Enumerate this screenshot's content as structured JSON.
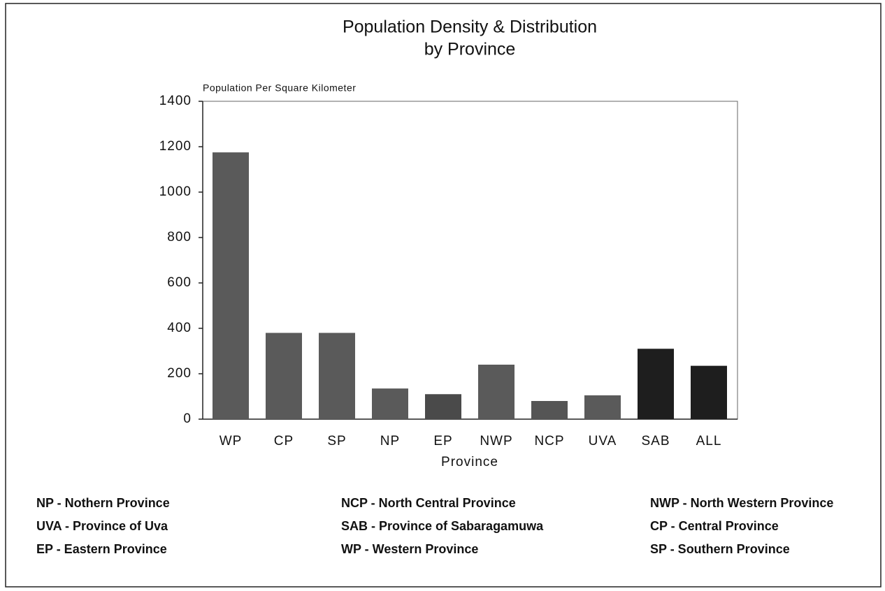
{
  "chart_data": {
    "type": "bar",
    "title": "Population Density & Distribution",
    "subtitle": "by Province",
    "y_label": "Population Per Square Kilometer",
    "x_label": "Province",
    "categories": [
      "WP",
      "CP",
      "SP",
      "NP",
      "EP",
      "NWP",
      "NCP",
      "UVA",
      "SAB",
      "ALL"
    ],
    "values": [
      1175,
      380,
      380,
      135,
      110,
      240,
      80,
      105,
      310,
      235
    ],
    "colors": [
      "#5a5a5a",
      "#5a5a5a",
      "#5a5a5a",
      "#5a5a5a",
      "#4a4a4a",
      "#5a5a5a",
      "#555555",
      "#5a5a5a",
      "#1e1e1e",
      "#1e1e1e"
    ],
    "ylim": [
      0,
      1400
    ],
    "yticks": [
      0,
      200,
      400,
      600,
      800,
      1000,
      1200,
      1400
    ],
    "grid": false,
    "notes": [
      [
        "NP - Nothern Province",
        "UVA - Province of Uva",
        "EP -  Eastern Province"
      ],
      [
        "NCP - North Central Province",
        "SAB - Province of Sabaragamuwa",
        "WP - Western Province"
      ],
      [
        "NWP - North Western Province",
        "CP - Central Province",
        "SP - Southern Province"
      ]
    ]
  }
}
